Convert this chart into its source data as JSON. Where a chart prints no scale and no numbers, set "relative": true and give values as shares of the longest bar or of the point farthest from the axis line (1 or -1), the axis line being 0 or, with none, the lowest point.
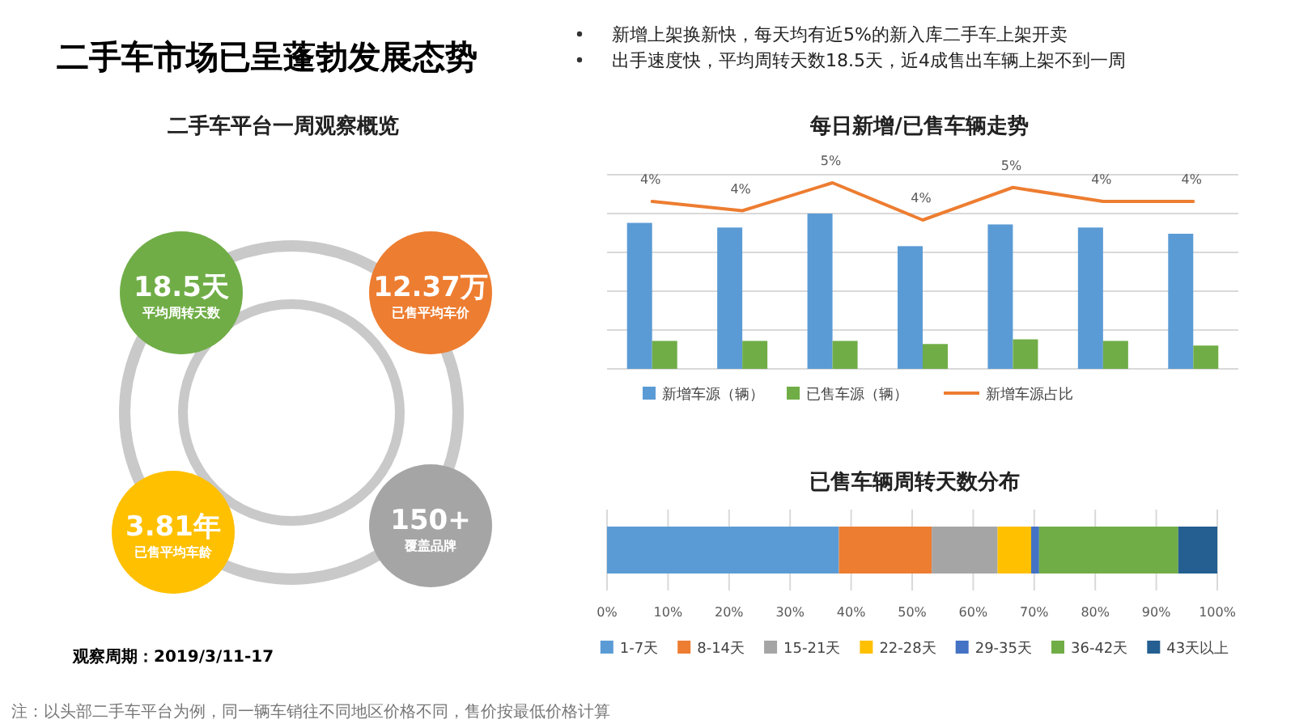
{
  "chart_data": [
    {
      "type": "other",
      "title": "二手车市场已呈蓬勃发展态势",
      "subtitle": "二手车平台一周观察概览",
      "annotations": [
        "新增上架换新快，每天均有近5%的新入库二手车上架开卖",
        "出手速度快，平均周转天数18.5天，近4成售出车辆上架不到一周",
        "18.5天",
        "平均周转天数",
        "12.37万",
        "已售平均车价",
        "3.81年",
        "已售平均车龄",
        "150+",
        "覆盖品牌",
        "观察周期：2019/3/11-17",
        "注：以头部二手车平台为例，同一辆车销往不同地区价格不同，售价按最低价格计算"
      ]
    },
    {
      "type": "bar",
      "title": "每日新增/已售车辆走势",
      "categories": [
        null,
        null,
        null,
        null,
        null,
        null,
        null
      ],
      "relative": true,
      "grid": "y",
      "legend": "bottom",
      "series": [
        {
          "name": "新增车源（辆）",
          "color": "#5b9bd5",
          "values": [
            0.94,
            0.91,
            1,
            0.79,
            0.93,
            0.91,
            0.87
          ]
        },
        {
          "name": "已售车源（辆）",
          "color": "#70ad47",
          "values": [
            0.18,
            0.18,
            0.18,
            0.16,
            0.19,
            0.18,
            0.15
          ]
        }
      ]
    },
    {
      "type": "line",
      "categories": [
        null,
        null,
        null,
        null,
        null,
        null,
        null
      ],
      "legend": "bottom",
      "series": [
        {
          "name": "新增车源占比",
          "color": "#ed7d31",
          "values": [
            4.3,
            4.1,
            4.7,
            3.9,
            4.6,
            4.3,
            4.3
          ],
          "value_labels": [
            "4%",
            "4%",
            "5%",
            "4%",
            "5%",
            "4%",
            "4%"
          ]
        }
      ]
    },
    {
      "type": "bar",
      "orientation": "horizontal",
      "stacked": true,
      "title": "已售车辆周转天数分布",
      "categories": [
        null
      ],
      "grid": "x",
      "legend": "bottom",
      "xlim": [
        0,
        100
      ],
      "xticks": [
        {
          "value": 0,
          "label": "0%"
        },
        {
          "value": 10,
          "label": "10%"
        },
        {
          "value": 20,
          "label": "20%"
        },
        {
          "value": 30,
          "label": "30%"
        },
        {
          "value": 40,
          "label": "40%"
        },
        {
          "value": 50,
          "label": "50%"
        },
        {
          "value": 60,
          "label": "60%"
        },
        {
          "value": 70,
          "label": "70%"
        },
        {
          "value": 80,
          "label": "80%"
        },
        {
          "value": 90,
          "label": "90%"
        },
        {
          "value": 100,
          "label": "100%"
        }
      ],
      "series": [
        {
          "name": "1-7天",
          "color": "#5b9bd5",
          "values": [
            38
          ]
        },
        {
          "name": "8-14天",
          "color": "#ed7d31",
          "values": [
            15.2
          ]
        },
        {
          "name": "15-21天",
          "color": "#a5a5a5",
          "values": [
            10.8
          ]
        },
        {
          "name": "22-28天",
          "color": "#ffc000",
          "values": [
            5.5
          ]
        },
        {
          "name": "29-35天",
          "color": "#4472c4",
          "values": [
            1.3
          ]
        },
        {
          "name": "36-42天",
          "color": "#70ad47",
          "values": [
            22.8
          ]
        },
        {
          "name": "43天以上",
          "color": "#255e91",
          "values": [
            6.4
          ]
        }
      ]
    }
  ]
}
